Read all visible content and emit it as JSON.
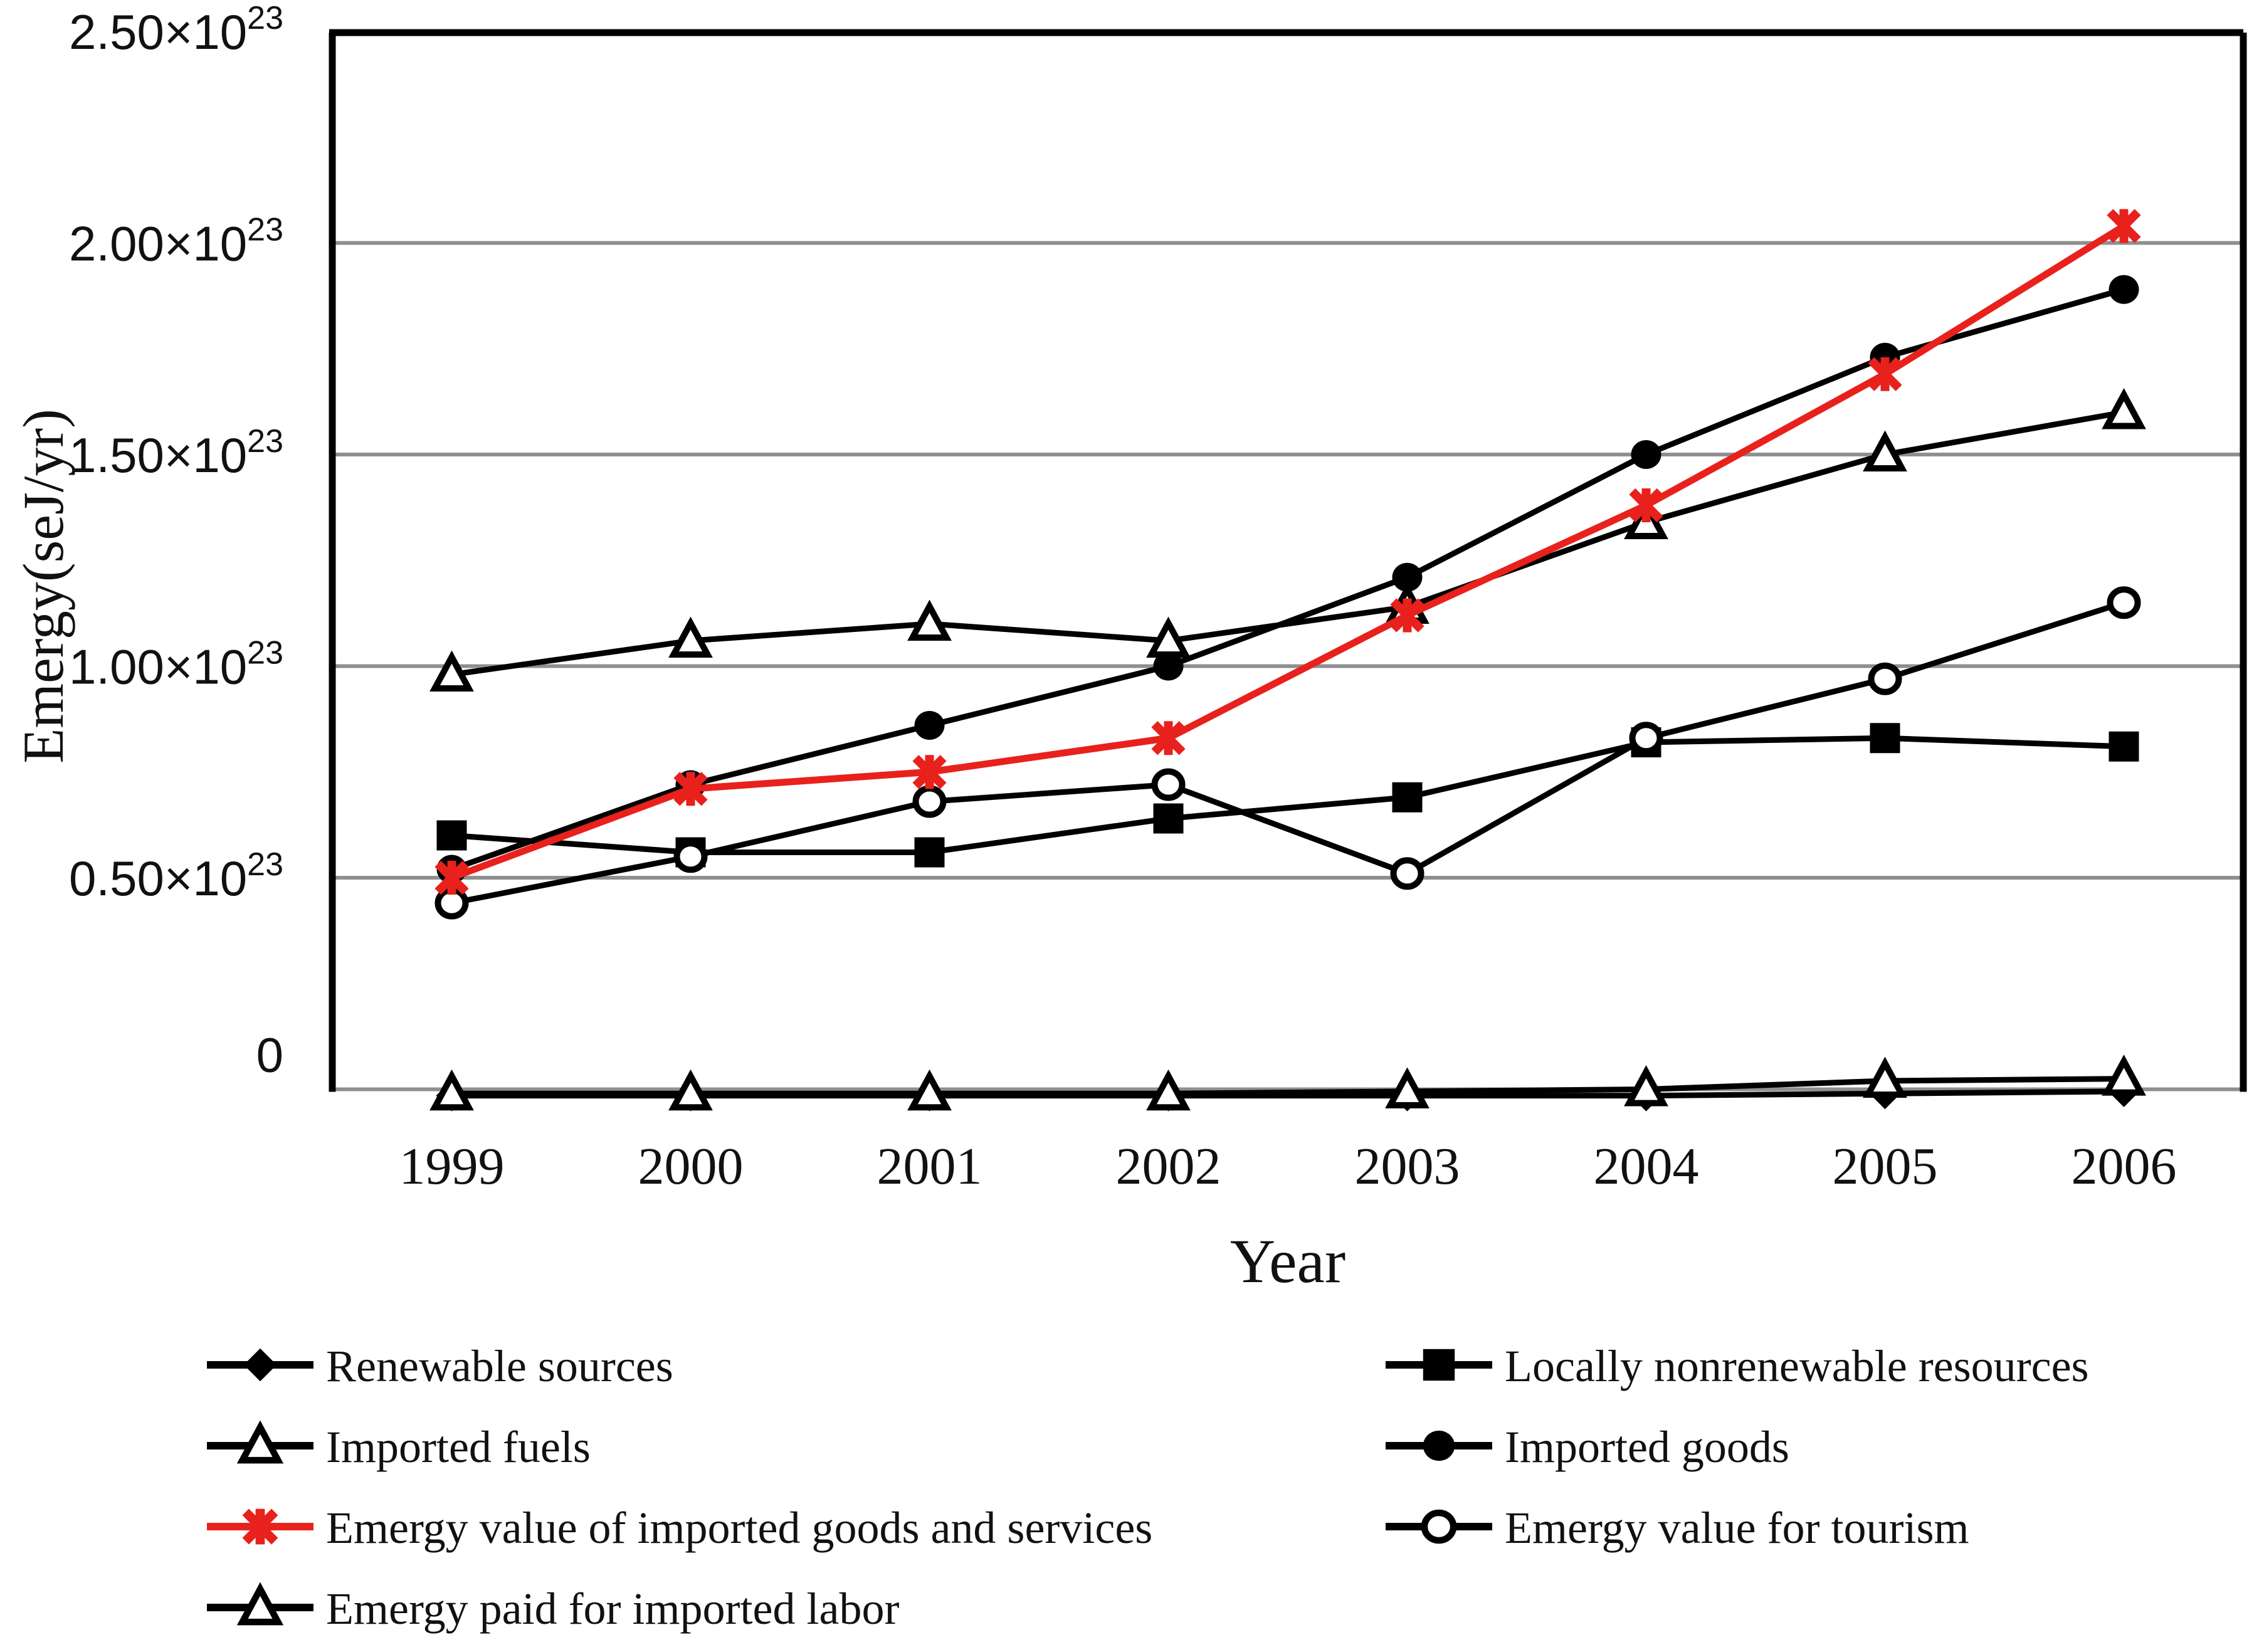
{
  "chart_data": {
    "type": "line",
    "title": "",
    "xlabel": "Year",
    "ylabel": "Emergy(seJ/yr)",
    "unit_note": "values in 10^23 seJ/yr",
    "grid": "horizontal gray gridlines at 0.50 steps",
    "legend_position": "bottom, two columns",
    "ylim": [
      -0.08,
      2.5
    ],
    "x_categories": [
      "1999",
      "2000",
      "2001",
      "2002",
      "2003",
      "2004",
      "2005",
      "2006"
    ],
    "y_ticks": [
      {
        "base": "2.50×10",
        "exp": "23",
        "value": 2.5
      },
      {
        "base": "2.00×10",
        "exp": "23",
        "value": 2.0
      },
      {
        "base": "1.50×10",
        "exp": "23",
        "value": 1.5
      },
      {
        "base": "1.00×10",
        "exp": "23",
        "value": 1.0
      },
      {
        "base": "0.50×10",
        "exp": "23",
        "value": 0.5
      },
      {
        "base": "0",
        "exp": "",
        "value": 0.0
      }
    ],
    "series": [
      {
        "name": "Renewable sources",
        "marker": "diamond-filled",
        "color": "#000000",
        "values": [
          -0.015,
          -0.015,
          -0.015,
          -0.015,
          -0.015,
          -0.015,
          -0.01,
          -0.005
        ]
      },
      {
        "name": "Locally nonrenewable resources",
        "marker": "square-filled",
        "color": "#000000",
        "values": [
          0.6,
          0.56,
          0.56,
          0.64,
          0.69,
          0.82,
          0.83,
          0.81
        ]
      },
      {
        "name": "Imported fuels",
        "marker": "triangle-open",
        "color": "#000000",
        "values": [
          0.98,
          1.06,
          1.1,
          1.06,
          1.14,
          1.34,
          1.5,
          1.6
        ]
      },
      {
        "name": "Imported goods",
        "marker": "circle-filled",
        "color": "#000000",
        "values": [
          0.52,
          0.72,
          0.86,
          1.0,
          1.21,
          1.5,
          1.73,
          1.89
        ]
      },
      {
        "name": "Emergy value for tourism",
        "marker": "circle-open",
        "color": "#000000",
        "values": [
          0.44,
          0.55,
          0.68,
          0.72,
          0.51,
          0.83,
          0.97,
          1.15
        ]
      },
      {
        "name": "Emergy paid for imported labor",
        "marker": "triangle-open",
        "color": "#000000",
        "values": [
          -0.01,
          -0.01,
          -0.01,
          -0.01,
          -0.005,
          0.0,
          0.02,
          0.025
        ]
      },
      {
        "name": "Emergy value of imported goods and services",
        "marker": "asterisk",
        "color": "#e8211d",
        "values": [
          0.5,
          0.71,
          0.75,
          0.83,
          1.12,
          1.38,
          1.69,
          2.04
        ]
      }
    ],
    "legend_columns": [
      [
        "Renewable sources",
        "Imported fuels",
        "Emergy value of imported goods and services",
        "Emergy paid for imported labor"
      ],
      [
        "Locally nonrenewable resources",
        "Imported goods",
        "Emergy value for tourism"
      ]
    ]
  },
  "colors": {
    "accent_red": "#e8211d",
    "gridline_gray": "#8f8f8f",
    "axis_black": "#000000",
    "text": "#111111"
  }
}
